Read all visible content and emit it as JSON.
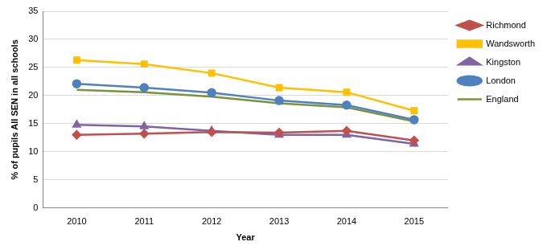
{
  "chart_data": {
    "type": "line",
    "x_label": "Year",
    "y_label": "% of pupils All SEN in all schools",
    "categories": [
      "2010",
      "2011",
      "2012",
      "2013",
      "2014",
      "2015"
    ],
    "series": [
      {
        "name": "Richmond",
        "color": "#c0504d",
        "marker": "diamond",
        "values": [
          13.0,
          13.2,
          13.5,
          13.4,
          13.7,
          12.0
        ]
      },
      {
        "name": "Wandsworth",
        "color": "#ffc000",
        "marker": "square",
        "values": [
          26.3,
          25.6,
          24.0,
          21.4,
          20.6,
          17.3
        ]
      },
      {
        "name": "Kingston",
        "color": "#8064a2",
        "marker": "triangle",
        "values": [
          14.8,
          14.5,
          13.7,
          13.0,
          13.0,
          11.4
        ]
      },
      {
        "name": "London",
        "color": "#4f81bd",
        "marker": "circle",
        "values": [
          22.1,
          21.4,
          20.5,
          19.1,
          18.3,
          15.7
        ]
      },
      {
        "name": "England",
        "color": "#77933c",
        "marker": "none",
        "values": [
          21.0,
          20.6,
          19.8,
          18.6,
          17.9,
          15.4
        ]
      }
    ],
    "ylim": [
      0,
      35
    ],
    "yticks": [
      0,
      5,
      10,
      15,
      20,
      25,
      30,
      35
    ],
    "grid": true,
    "legend": "right"
  }
}
